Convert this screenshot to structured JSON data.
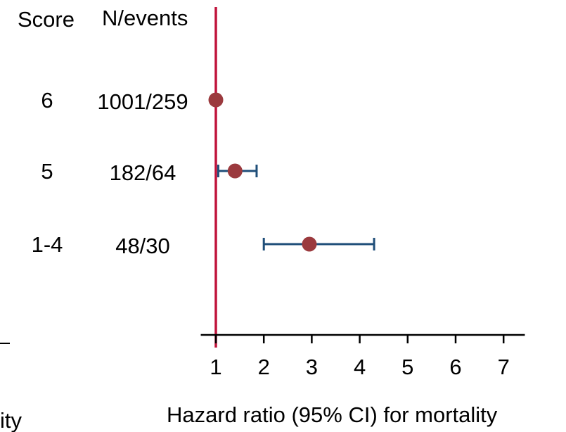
{
  "chart_data": {
    "type": "forest",
    "column_headers": {
      "score": "Score",
      "n_events": "N/events"
    },
    "rows": [
      {
        "score": "6",
        "n_events": "1001/259",
        "hr": 1.0,
        "ci_low": 1.0,
        "ci_high": 1.0
      },
      {
        "score": "5",
        "n_events": "182/64",
        "hr": 1.4,
        "ci_low": 1.05,
        "ci_high": 1.85
      },
      {
        "score": "1-4",
        "n_events": "48/30",
        "hr": 2.95,
        "ci_low": 2.0,
        "ci_high": 4.3
      }
    ],
    "x_ticks": [
      "1",
      "2",
      "3",
      "4",
      "5",
      "6",
      "7"
    ],
    "xlim": [
      0.7,
      7.4
    ],
    "reference_line": 1,
    "xlabel": "Hazard ratio (95% CI) for mortality",
    "cropped_left_text": "ity",
    "colors": {
      "reference_line": "#c0143c",
      "point": "#9b3a3e",
      "ci": "#1f4e79",
      "axis": "#000000"
    }
  }
}
